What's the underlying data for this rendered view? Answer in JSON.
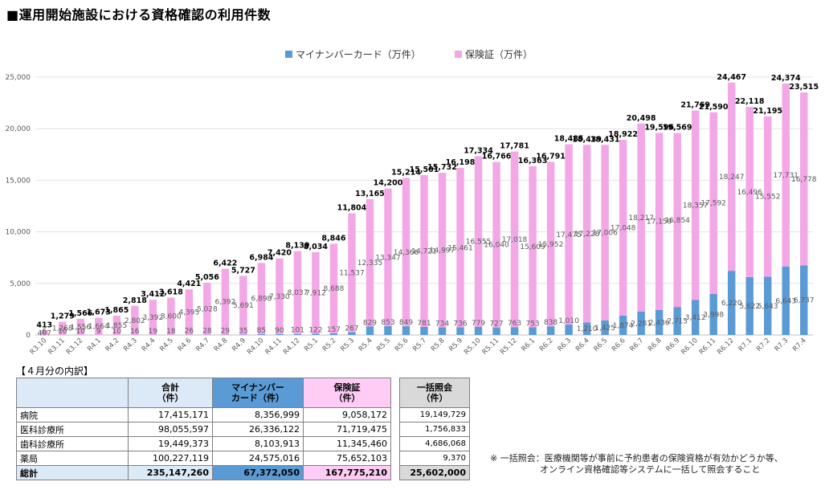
{
  "title": "■運用開始施設における資格確認の利用件数",
  "legend": {
    "my_number": "マイナンバーカード（万件）",
    "insurance": "保険証（万件）"
  },
  "colors": {
    "my_number": "#5b9bd5",
    "insurance": "#f3a7e6",
    "header_blue": "#5b9bd5",
    "header_light": "#dce9f7",
    "header_pink": "#ffccf5",
    "header_gray": "#d9d9d9"
  },
  "chart_data": {
    "type": "bar",
    "stacked": true,
    "categories": [
      "R3.10",
      "R3.11",
      "R3.12",
      "R4.1",
      "R4.2",
      "R4.3",
      "R4.4",
      "R4.5",
      "R4.6",
      "R4.7",
      "R4.8",
      "R4.9",
      "R4.10",
      "R4.11",
      "R4.12",
      "R5.1",
      "R5.2",
      "R5.3",
      "R5.4",
      "R5.5",
      "R5.6",
      "R5.7",
      "R5.8",
      "R5.9",
      "R5.10",
      "R5.11",
      "R5.12",
      "R6.1",
      "R6.2",
      "R6.3",
      "R6.4",
      "R6.5",
      "R6.6",
      "R6.7",
      "R6.8",
      "R6.9",
      "R6.10",
      "R6.11",
      "R6.12",
      "R7.1",
      "R7.2",
      "R7.3",
      "R7.4"
    ],
    "series": [
      {
        "name": "マイナンバーカード（万件）",
        "values": [
          6,
          10,
          10,
          9,
          10,
          16,
          19,
          18,
          26,
          28,
          29,
          35,
          85,
          90,
          101,
          122,
          157,
          267,
          829,
          853,
          849,
          781,
          734,
          736,
          779,
          727,
          763,
          753,
          838,
          1010,
          1210,
          1425,
          1874,
          2281,
          2436,
          2715,
          3412,
          3998,
          6220,
          5622,
          5643,
          6643,
          6737
        ]
      },
      {
        "name": "保険証（万件）",
        "values": [
          407,
          1268,
          1556,
          1664,
          1855,
          2802,
          3392,
          3600,
          4395,
          5028,
          6392,
          5691,
          6898,
          7330,
          8037,
          7912,
          8688,
          11537,
          12335,
          13347,
          14366,
          14721,
          14997,
          15461,
          16555,
          16040,
          17018,
          15609,
          15952,
          17475,
          17228,
          17006,
          17048,
          18217,
          17159,
          16854,
          18357,
          17592,
          18247,
          16496,
          15552,
          17731,
          16778
        ]
      }
    ],
    "totals": [
      413,
      1279,
      1566,
      1673,
      1865,
      2818,
      3412,
      3618,
      4421,
      5056,
      6422,
      5727,
      6984,
      7420,
      8139,
      8034,
      8846,
      11804,
      13165,
      14200,
      15214,
      15501,
      15732,
      16198,
      17334,
      16766,
      17781,
      16363,
      16791,
      18485,
      18439,
      18431,
      18922,
      20498,
      19596,
      19569,
      21769,
      21590,
      24467,
      22118,
      21195,
      24374,
      23515
    ],
    "ylim": [
      0,
      25000
    ],
    "yticks": [
      0,
      5000,
      10000,
      15000,
      20000,
      25000
    ],
    "ytick_labels": [
      "0",
      "5,000",
      "10,000",
      "15,000",
      "20,000",
      "25,000"
    ],
    "grid": true,
    "legend_position": "top-center"
  },
  "breakdown": {
    "title": "【４月分の内訳】",
    "headers": {
      "total": "合計\n（件）",
      "my_number": "マイナンバー\nカード（件）",
      "insurance": "保険証\n（件）",
      "ikkatsu": "一括照会\n（件）"
    },
    "rows": [
      {
        "label": "病院",
        "total": "17,415,171",
        "my_number": "8,356,999",
        "insurance": "9,058,172",
        "ikkatsu": "19,149,729"
      },
      {
        "label": "医科診療所",
        "total": "98,055,597",
        "my_number": "26,336,122",
        "insurance": "71,719,475",
        "ikkatsu": "1,756,833"
      },
      {
        "label": "歯科診療所",
        "total": "19,449,373",
        "my_number": "8,103,913",
        "insurance": "11,345,460",
        "ikkatsu": "4,686,068"
      },
      {
        "label": "薬局",
        "total": "100,227,119",
        "my_number": "24,575,016",
        "insurance": "75,652,103",
        "ikkatsu": "9,370"
      }
    ],
    "sum": {
      "label": "総計",
      "total": "235,147,260",
      "my_number": "67,372,050",
      "insurance": "167,775,210",
      "ikkatsu": "25,602,000"
    }
  },
  "note": {
    "line1": "※ 一括照会：医療機関等が事前に予約患者の保険資格が有効かどうか等、",
    "line2": "オンライン資格確認等システムに一括して照会すること"
  }
}
